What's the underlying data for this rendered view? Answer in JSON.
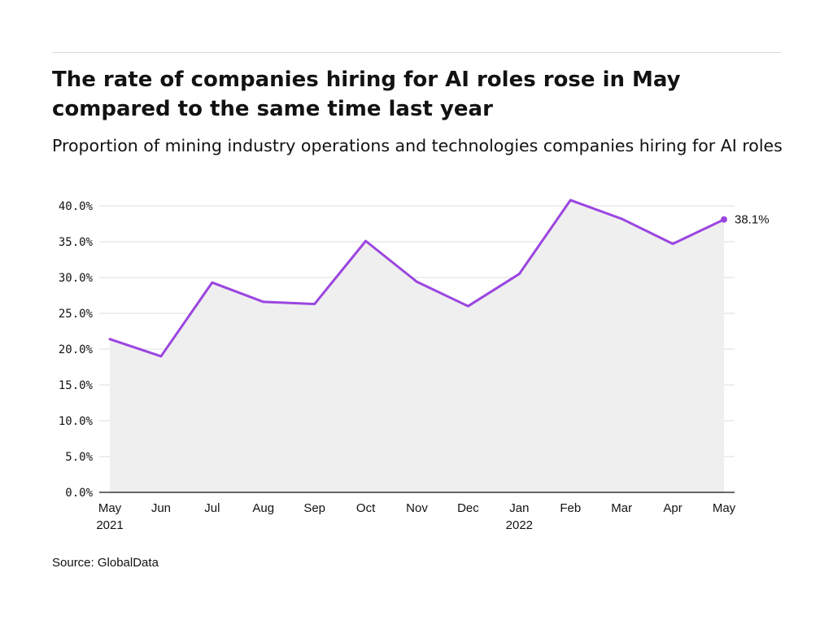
{
  "title": "The rate of companies hiring for AI roles rose in May compared to the same time last year",
  "subtitle": "Proportion of mining industry operations and technologies companies hiring for AI roles",
  "source": "Source: GlobalData",
  "colors": {
    "line": "#9b46e0",
    "area": "#efefef",
    "grid": "#dcdcdc",
    "axis": "#121212"
  },
  "chart_data": {
    "type": "area",
    "title": "The rate of companies hiring for AI roles rose in May compared to the same time last year",
    "subtitle": "Proportion of mining industry operations and technologies companies hiring for AI roles",
    "xlabel": "",
    "ylabel": "",
    "categories": [
      "May 2021",
      "Jun 2021",
      "Jul 2021",
      "Aug 2021",
      "Sep 2021",
      "Oct 2021",
      "Nov 2021",
      "Dec 2021",
      "Jan 2022",
      "Feb 2022",
      "Mar 2022",
      "Apr 2022",
      "May 2022"
    ],
    "x_tick_labels": [
      {
        "month": "May",
        "year": "2021"
      },
      {
        "month": "Jun",
        "year": ""
      },
      {
        "month": "Jul",
        "year": ""
      },
      {
        "month": "Aug",
        "year": ""
      },
      {
        "month": "Sep",
        "year": ""
      },
      {
        "month": "Oct",
        "year": ""
      },
      {
        "month": "Nov",
        "year": ""
      },
      {
        "month": "Dec",
        "year": ""
      },
      {
        "month": "Jan",
        "year": "2022"
      },
      {
        "month": "Feb",
        "year": ""
      },
      {
        "month": "Mar",
        "year": ""
      },
      {
        "month": "Apr",
        "year": ""
      },
      {
        "month": "May",
        "year": ""
      }
    ],
    "values": [
      21.4,
      19.0,
      29.3,
      26.6,
      26.3,
      35.1,
      29.4,
      26.0,
      30.5,
      40.8,
      38.2,
      34.7,
      38.1
    ],
    "ylim": [
      0,
      40
    ],
    "y_ticks": [
      0,
      5,
      10,
      15,
      20,
      25,
      30,
      35,
      40
    ],
    "y_tick_labels": [
      "0.0%",
      "5.0%",
      "10.0%",
      "15.0%",
      "20.0%",
      "25.0%",
      "30.0%",
      "35.0%",
      "40.0%"
    ],
    "grid": true,
    "end_label": "38.1%"
  }
}
